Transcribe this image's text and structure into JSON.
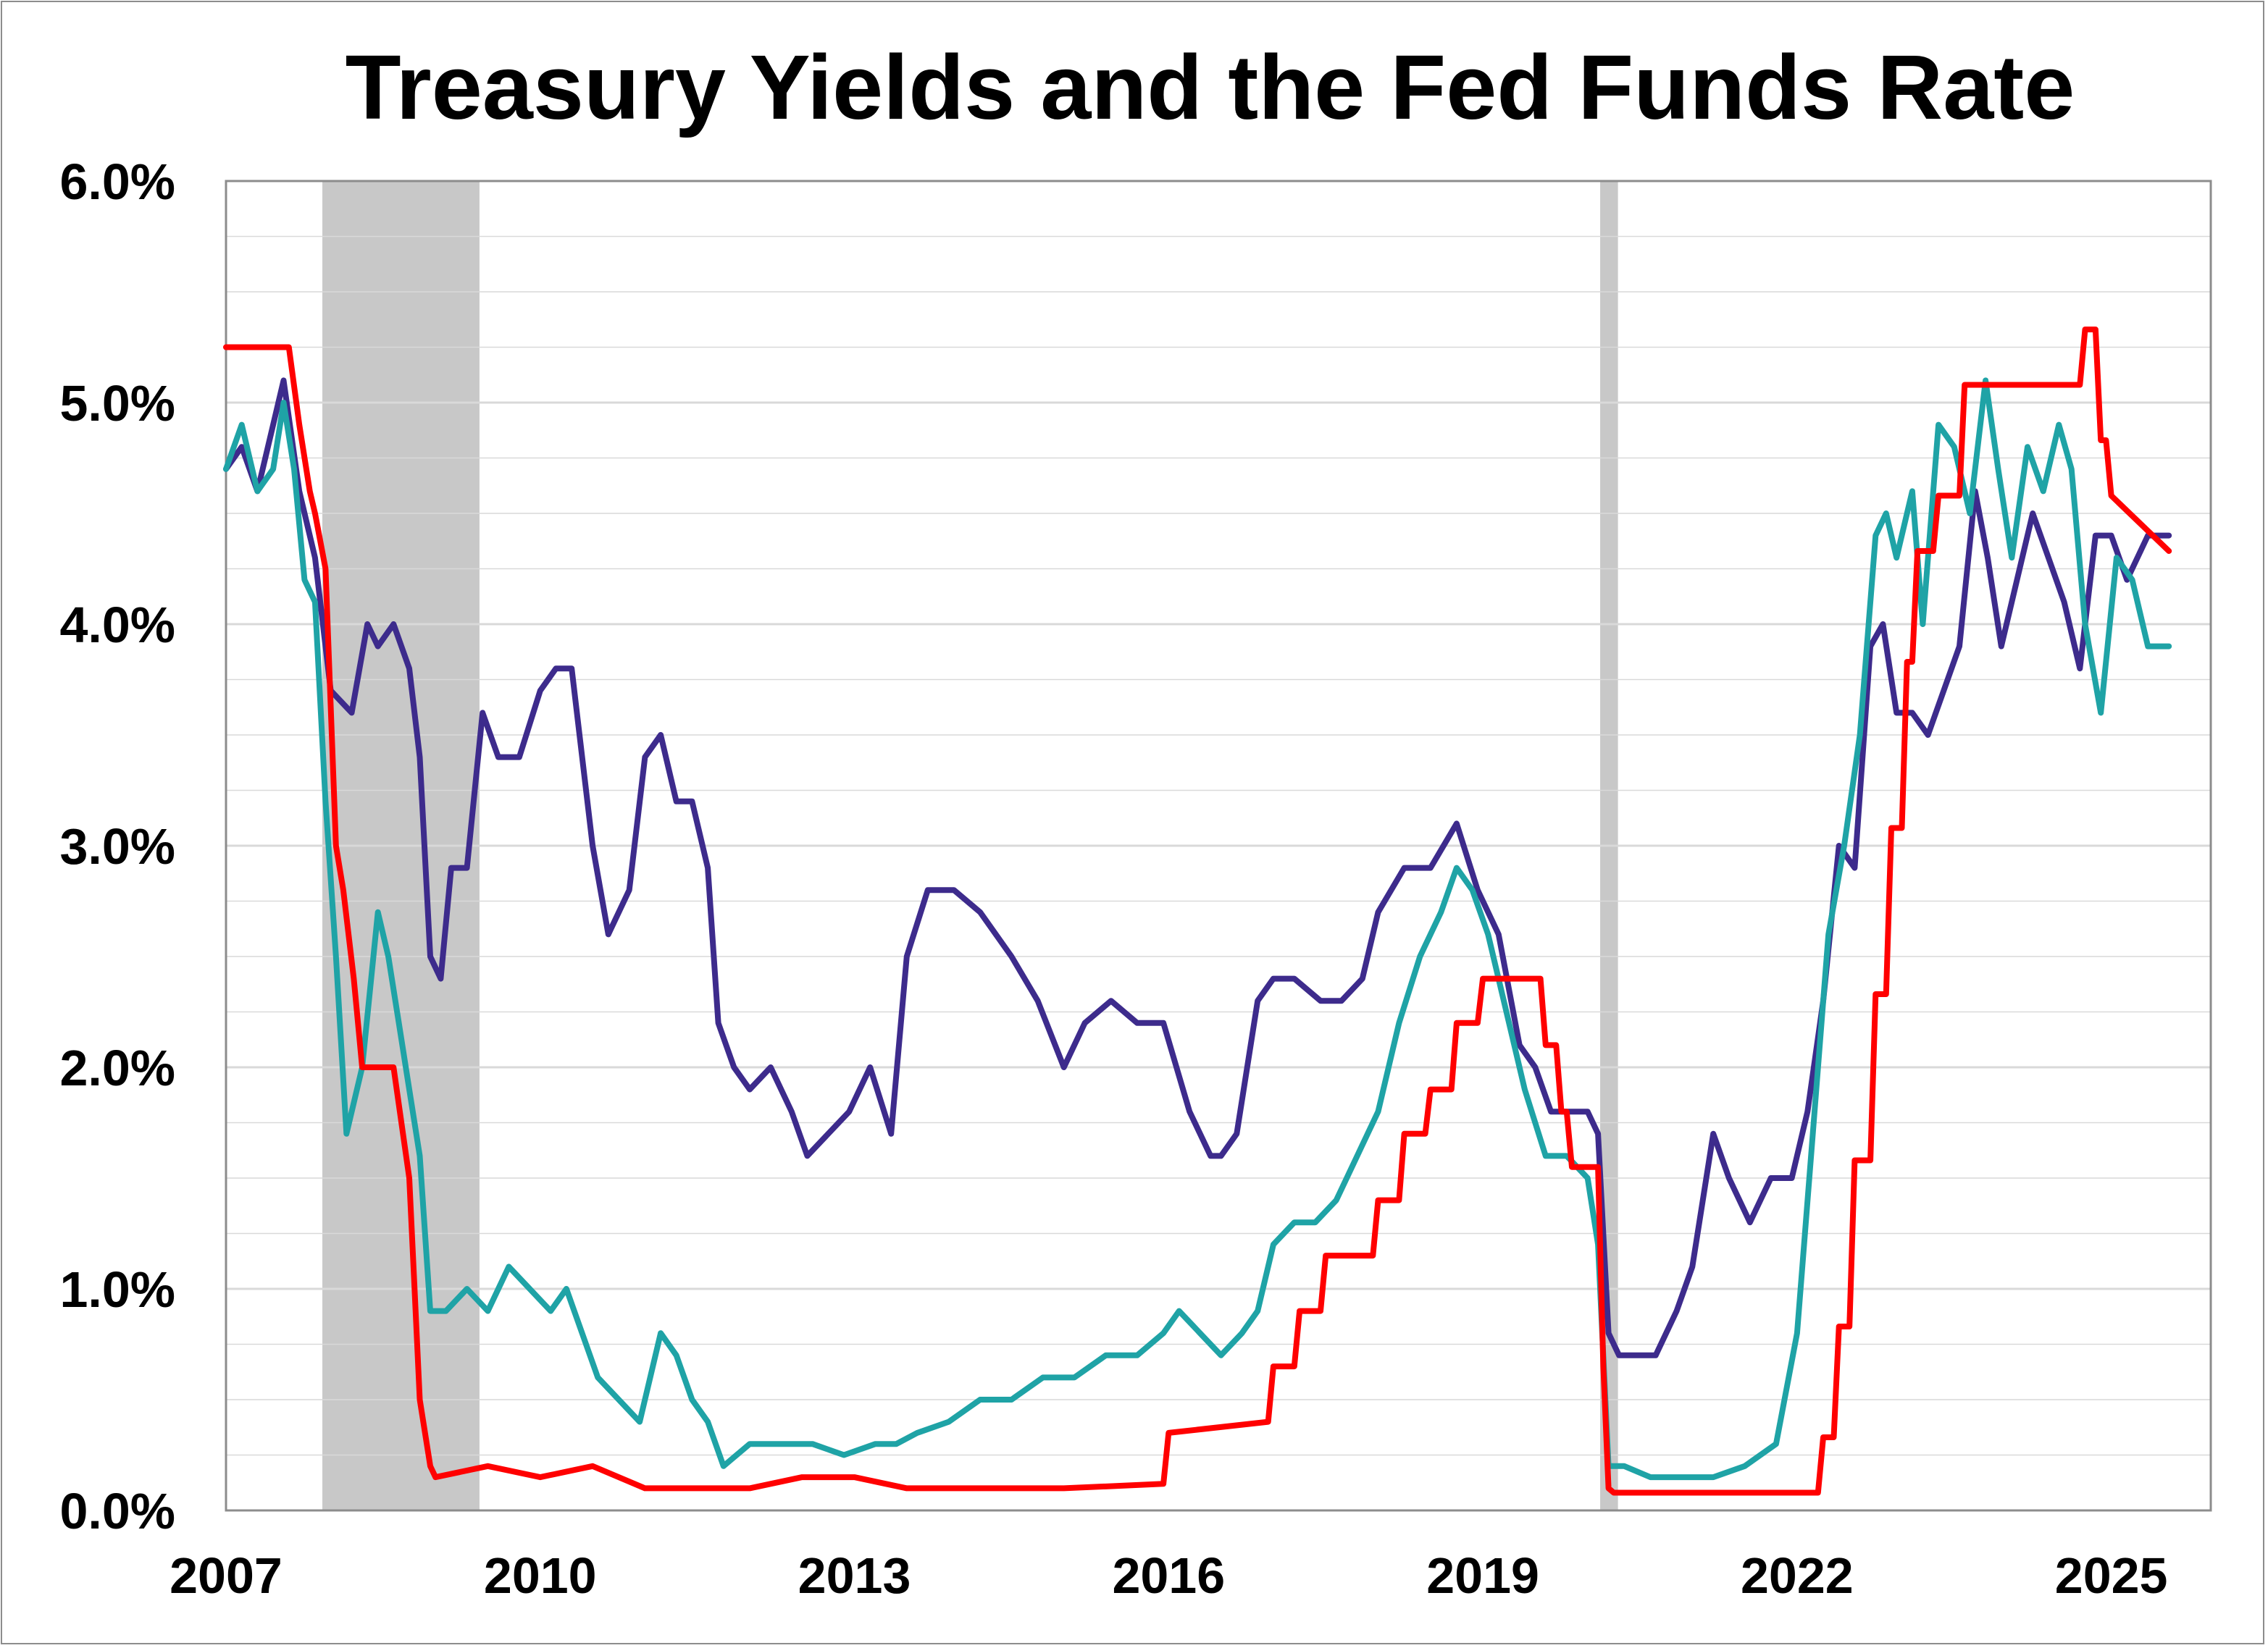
{
  "chart_data": {
    "type": "line",
    "title": "Treasury Yields and the Fed Funds Rate",
    "xlabel": "",
    "ylabel": "",
    "xlim": [
      2007.0,
      2025.95
    ],
    "ylim": [
      0,
      6
    ],
    "x_ticks": [
      2007,
      2010,
      2013,
      2016,
      2019,
      2022,
      2025
    ],
    "x_tick_labels": [
      "2007",
      "2010",
      "2013",
      "2016",
      "2019",
      "2022",
      "2025"
    ],
    "y_ticks": [
      0,
      1,
      2,
      3,
      4,
      5,
      6
    ],
    "y_tick_labels": [
      "0.0%",
      "1.0%",
      "2.0%",
      "3.0%",
      "4.0%",
      "5.0%",
      "6.0%"
    ],
    "grid": "horizontal",
    "legend": "none",
    "recession_shading": [
      {
        "start": 2007.92,
        "end": 2009.42
      },
      {
        "start": 2020.12,
        "end": 2020.29
      }
    ],
    "colors": {
      "long_yield": "#3d2b8c",
      "short_yield": "#1fa3a6",
      "fed_funds": "#ff0000",
      "recession": "#c8c8c8",
      "grid": "#d9d9d9",
      "axis": "#8c8c8c"
    },
    "series": [
      {
        "color": "#3d2b8c",
        "x": [
          2007.0,
          2007.15,
          2007.3,
          2007.45,
          2007.55,
          2007.7,
          2007.85,
          2008.0,
          2008.2,
          2008.35,
          2008.45,
          2008.6,
          2008.75,
          2008.85,
          2008.95,
          2009.05,
          2009.15,
          2009.3,
          2009.45,
          2009.6,
          2009.8,
          2010.0,
          2010.15,
          2010.3,
          2010.5,
          2010.65,
          2010.85,
          2011.0,
          2011.15,
          2011.3,
          2011.45,
          2011.6,
          2011.7,
          2011.85,
          2012.0,
          2012.2,
          2012.4,
          2012.55,
          2012.75,
          2012.95,
          2013.15,
          2013.35,
          2013.5,
          2013.7,
          2013.95,
          2014.2,
          2014.5,
          2014.75,
          2015.0,
          2015.2,
          2015.45,
          2015.7,
          2015.95,
          2016.2,
          2016.4,
          2016.5,
          2016.65,
          2016.85,
          2017.0,
          2017.2,
          2017.45,
          2017.65,
          2017.85,
          2018.0,
          2018.25,
          2018.5,
          2018.75,
          2018.95,
          2019.15,
          2019.35,
          2019.5,
          2019.65,
          2019.85,
          2020.0,
          2020.1,
          2020.2,
          2020.3,
          2020.5,
          2020.65,
          2020.85,
          2021.0,
          2021.2,
          2021.35,
          2021.55,
          2021.75,
          2021.95,
          2022.1,
          2022.25,
          2022.4,
          2022.55,
          2022.7,
          2022.82,
          2022.95,
          2023.1,
          2023.25,
          2023.4,
          2023.55,
          2023.7,
          2023.82,
          2023.95,
          2024.1,
          2024.25,
          2024.4,
          2024.55,
          2024.7,
          2024.85,
          2025.0,
          2025.15,
          2025.35,
          2025.55
        ],
        "y": [
          4.7,
          4.8,
          4.6,
          4.9,
          5.1,
          4.6,
          4.3,
          3.7,
          3.6,
          4.0,
          3.9,
          4.0,
          3.8,
          3.4,
          2.5,
          2.4,
          2.9,
          2.9,
          3.6,
          3.4,
          3.4,
          3.7,
          3.8,
          3.8,
          3.0,
          2.6,
          2.8,
          3.4,
          3.5,
          3.2,
          3.2,
          2.9,
          2.2,
          2.0,
          1.9,
          2.0,
          1.8,
          1.6,
          1.7,
          1.8,
          2.0,
          1.7,
          2.5,
          2.8,
          2.8,
          2.7,
          2.5,
          2.3,
          2.0,
          2.2,
          2.3,
          2.2,
          2.2,
          1.8,
          1.6,
          1.6,
          1.7,
          2.3,
          2.4,
          2.4,
          2.3,
          2.3,
          2.4,
          2.7,
          2.9,
          2.9,
          3.1,
          2.8,
          2.6,
          2.1,
          2.0,
          1.8,
          1.8,
          1.8,
          1.7,
          0.8,
          0.7,
          0.7,
          0.7,
          0.9,
          1.1,
          1.7,
          1.5,
          1.3,
          1.5,
          1.5,
          1.8,
          2.3,
          3.0,
          2.9,
          3.9,
          4.0,
          3.6,
          3.6,
          3.5,
          3.7,
          3.9,
          4.6,
          4.3,
          3.9,
          4.2,
          4.5,
          4.3,
          4.1,
          3.8,
          4.4,
          4.4,
          4.2,
          4.4,
          4.4
        ]
      },
      {
        "color": "#1fa3a6",
        "x": [
          2007.0,
          2007.15,
          2007.3,
          2007.45,
          2007.55,
          2007.65,
          2007.75,
          2007.85,
          2007.95,
          2008.05,
          2008.15,
          2008.3,
          2008.45,
          2008.55,
          2008.65,
          2008.75,
          2008.85,
          2008.95,
          2009.1,
          2009.3,
          2009.5,
          2009.7,
          2009.9,
          2010.1,
          2010.25,
          2010.4,
          2010.55,
          2010.75,
          2010.95,
          2011.15,
          2011.3,
          2011.45,
          2011.6,
          2011.75,
          2012.0,
          2012.3,
          2012.6,
          2012.9,
          2013.2,
          2013.4,
          2013.6,
          2013.9,
          2014.2,
          2014.5,
          2014.8,
          2015.1,
          2015.4,
          2015.7,
          2015.95,
          2016.1,
          2016.3,
          2016.5,
          2016.7,
          2016.85,
          2017.0,
          2017.2,
          2017.4,
          2017.6,
          2017.8,
          2018.0,
          2018.2,
          2018.4,
          2018.6,
          2018.75,
          2018.9,
          2019.05,
          2019.2,
          2019.4,
          2019.6,
          2019.8,
          2020.0,
          2020.1,
          2020.2,
          2020.35,
          2020.6,
          2020.9,
          2021.2,
          2021.5,
          2021.8,
          2022.0,
          2022.15,
          2022.3,
          2022.45,
          2022.6,
          2022.75,
          2022.85,
          2022.95,
          2023.1,
          2023.2,
          2023.35,
          2023.5,
          2023.65,
          2023.8,
          2023.92,
          2024.05,
          2024.2,
          2024.35,
          2024.5,
          2024.62,
          2024.75,
          2024.9,
          2025.05,
          2025.2,
          2025.35,
          2025.55
        ],
        "y": [
          4.7,
          4.9,
          4.6,
          4.7,
          5.0,
          4.7,
          4.2,
          4.1,
          3.2,
          2.5,
          1.7,
          2.0,
          2.7,
          2.5,
          2.2,
          1.9,
          1.6,
          0.9,
          0.9,
          1.0,
          0.9,
          1.1,
          1.0,
          0.9,
          1.0,
          0.8,
          0.6,
          0.5,
          0.4,
          0.8,
          0.7,
          0.5,
          0.4,
          0.2,
          0.3,
          0.3,
          0.3,
          0.25,
          0.3,
          0.3,
          0.35,
          0.4,
          0.5,
          0.5,
          0.6,
          0.6,
          0.7,
          0.7,
          0.8,
          0.9,
          0.8,
          0.7,
          0.8,
          0.9,
          1.2,
          1.3,
          1.3,
          1.4,
          1.6,
          1.8,
          2.2,
          2.5,
          2.7,
          2.9,
          2.8,
          2.6,
          2.3,
          1.9,
          1.6,
          1.6,
          1.5,
          1.2,
          0.2,
          0.2,
          0.15,
          0.15,
          0.15,
          0.2,
          0.3,
          0.8,
          1.7,
          2.6,
          3.0,
          3.5,
          4.4,
          4.5,
          4.3,
          4.6,
          4.0,
          4.9,
          4.8,
          4.5,
          5.1,
          4.7,
          4.3,
          4.8,
          4.6,
          4.9,
          4.7,
          4.0,
          3.6,
          4.3,
          4.2,
          3.9,
          3.9
        ]
      },
      {
        "color": "#ff0000",
        "x": [
          2007.0,
          2007.6,
          2007.7,
          2007.8,
          2007.85,
          2007.95,
          2008.05,
          2008.12,
          2008.22,
          2008.3,
          2008.6,
          2008.75,
          2008.8,
          2008.85,
          2008.95,
          2009.0,
          2009.5,
          2010.0,
          2010.5,
          2011.0,
          2011.5,
          2012.0,
          2012.5,
          2013.0,
          2013.5,
          2014.0,
          2015.0,
          2015.95,
          2016.0,
          2016.95,
          2017.0,
          2017.2,
          2017.25,
          2017.45,
          2017.5,
          2017.95,
          2018.0,
          2018.2,
          2018.25,
          2018.45,
          2018.5,
          2018.7,
          2018.75,
          2018.95,
          2019.0,
          2019.55,
          2019.6,
          2019.7,
          2019.75,
          2019.8,
          2019.85,
          2020.1,
          2020.15,
          2020.2,
          2020.25,
          2021.0,
          2022.0,
          2022.2,
          2022.25,
          2022.35,
          2022.4,
          2022.5,
          2022.55,
          2022.7,
          2022.75,
          2022.85,
          2022.9,
          2023.0,
          2023.05,
          2023.1,
          2023.15,
          2023.3,
          2023.35,
          2023.55,
          2023.6,
          2024.7,
          2024.75,
          2024.85,
          2024.9,
          2024.95,
          2025.0,
          2025.55
        ],
        "y": [
          5.25,
          5.25,
          4.9,
          4.6,
          4.5,
          4.25,
          3.0,
          2.8,
          2.4,
          2.0,
          2.0,
          1.5,
          1.0,
          0.5,
          0.2,
          0.15,
          0.2,
          0.15,
          0.2,
          0.1,
          0.1,
          0.1,
          0.15,
          0.15,
          0.1,
          0.1,
          0.1,
          0.12,
          0.35,
          0.4,
          0.65,
          0.65,
          0.9,
          0.9,
          1.15,
          1.15,
          1.4,
          1.4,
          1.7,
          1.7,
          1.9,
          1.9,
          2.2,
          2.2,
          2.4,
          2.4,
          2.1,
          2.1,
          1.8,
          1.8,
          1.55,
          1.55,
          0.65,
          0.1,
          0.08,
          0.08,
          0.08,
          0.08,
          0.33,
          0.33,
          0.83,
          0.83,
          1.58,
          1.58,
          2.33,
          2.33,
          3.08,
          3.08,
          3.83,
          3.83,
          4.33,
          4.33,
          4.58,
          4.58,
          5.08,
          5.08,
          5.33,
          5.33,
          4.83,
          4.83,
          4.58,
          4.33
        ]
      }
    ]
  }
}
